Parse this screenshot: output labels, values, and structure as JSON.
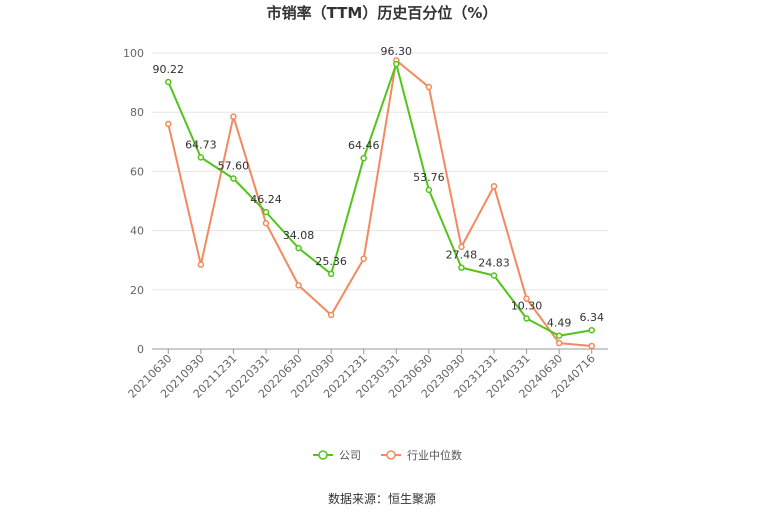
{
  "chart_data": {
    "type": "line",
    "title": "市销率（TTM）历史百分位（%）",
    "categories": [
      "20210630",
      "20210930",
      "20211231",
      "20220331",
      "20220630",
      "20220930",
      "20221231",
      "20230331",
      "20230630",
      "20230930",
      "20231231",
      "20240331",
      "20240630",
      "20240716"
    ],
    "ylim": [
      0,
      100
    ],
    "yticks": [
      0,
      20,
      40,
      60,
      80,
      100
    ],
    "grid": true,
    "legend_position": "bottom",
    "series": [
      {
        "name": "公司",
        "color": "#52c41a",
        "values": [
          90.22,
          64.73,
          57.6,
          46.24,
          34.08,
          25.36,
          64.46,
          96.3,
          53.76,
          27.48,
          24.83,
          10.3,
          4.49,
          6.34
        ],
        "labels": [
          "90.22",
          "64.73",
          "57.60",
          "46.24",
          "34.08",
          "25.36",
          "64.46",
          "96.30",
          "53.76",
          "27.48",
          "24.83",
          "10.30",
          "4.49",
          "6.34"
        ]
      },
      {
        "name": "行业中位数",
        "color": "#f4895f",
        "values": [
          76,
          28.5,
          78.5,
          42.5,
          21.5,
          11.5,
          30.5,
          97.5,
          88.5,
          34.5,
          55,
          17,
          2,
          1
        ]
      }
    ]
  },
  "source_text": "数据来源：恒生聚源"
}
